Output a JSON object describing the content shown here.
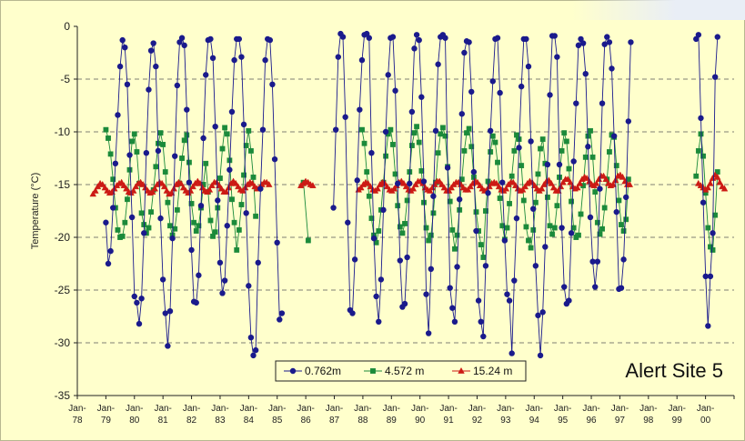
{
  "chart_data": {
    "type": "line",
    "title": "Alert Site 5",
    "ylabel": "Temperature (°C)",
    "xlabel": "",
    "ylim": [
      -35,
      0
    ],
    "yticks": [
      0,
      -5,
      -10,
      -15,
      -20,
      -25,
      -30,
      -35
    ],
    "xlim": [
      1978,
      2001
    ],
    "xtick_labels": [
      {
        "year": 1978,
        "top": "Jan-",
        "bottom": "78"
      },
      {
        "year": 1979,
        "top": "Jan-",
        "bottom": "79"
      },
      {
        "year": 1980,
        "top": "Jan-",
        "bottom": "80"
      },
      {
        "year": 1981,
        "top": "Jan-",
        "bottom": "81"
      },
      {
        "year": 1982,
        "top": "Jan-",
        "bottom": "82"
      },
      {
        "year": 1983,
        "top": "Jan-",
        "bottom": "83"
      },
      {
        "year": 1984,
        "top": "Jan-",
        "bottom": "84"
      },
      {
        "year": 1985,
        "top": "Jan-",
        "bottom": "85"
      },
      {
        "year": 1986,
        "top": "Jan-",
        "bottom": "86"
      },
      {
        "year": 1987,
        "top": "Jan-",
        "bottom": "87"
      },
      {
        "year": 1988,
        "top": "Jan-",
        "bottom": "88"
      },
      {
        "year": 1989,
        "top": "Jan-",
        "bottom": "89"
      },
      {
        "year": 1990,
        "top": "Jan-",
        "bottom": "90"
      },
      {
        "year": 1991,
        "top": "Jan-",
        "bottom": "91"
      },
      {
        "year": 1992,
        "top": "Jan-",
        "bottom": "92"
      },
      {
        "year": 1993,
        "top": "Jan-",
        "bottom": "93"
      },
      {
        "year": 1994,
        "top": "Jan-",
        "bottom": "94"
      },
      {
        "year": 1995,
        "top": "Jan-",
        "bottom": "95"
      },
      {
        "year": 1996,
        "top": "Jan-",
        "bottom": "96"
      },
      {
        "year": 1997,
        "top": "Jan-",
        "bottom": "97"
      },
      {
        "year": 1998,
        "top": "Jan-",
        "bottom": "98"
      },
      {
        "year": 1999,
        "top": "Jan-",
        "bottom": "99"
      },
      {
        "year": 2000,
        "top": "Jan-",
        "bottom": "00"
      },
      {
        "year": 2001,
        "top": "",
        "bottom": ""
      }
    ],
    "grid": "horizontal dashed",
    "legend_position": "bottom-center",
    "series": [
      {
        "name": "0.762m",
        "color": "#1a1a8c",
        "marker": "circle",
        "segments": [
          {
            "start": 1979.0,
            "step": 0.0833,
            "values": [
              -18.6,
              -22.5,
              -21.3,
              -17.2,
              -13.0,
              -8.4,
              -3.8,
              -1.3,
              -2.0,
              -5.5,
              -12.2,
              -18.1,
              -25.6,
              -26.2,
              -28.2,
              -25.8,
              -19.6,
              -12.0,
              -6.0,
              -2.3,
              -1.6,
              -3.8,
              -11.8,
              -18.2,
              -24.0,
              -27.2,
              -30.3,
              -27.0,
              -20.1,
              -12.3,
              -5.6,
              -1.5,
              -1.1,
              -1.8,
              -7.9,
              -14.8,
              -21.2,
              -26.1,
              -26.2,
              -23.6,
              -17.0,
              -10.6,
              -4.6,
              -1.3,
              -1.2,
              -3.0,
              -9.5,
              -16.5,
              -22.4,
              -25.3,
              -24.1,
              -18.9,
              -13.6,
              -8.1,
              -3.2,
              -1.2,
              -1.2,
              -2.9,
              -9.3,
              -17.7,
              -24.6,
              -29.5,
              -31.2,
              -30.7,
              -22.4,
              -15.4,
              -9.8,
              -3.2,
              -1.2,
              -1.3,
              -5.5,
              -12.6,
              -20.5,
              -27.8,
              -27.2
            ]
          },
          {
            "start": 1986.97,
            "step": 0.0833,
            "values": [
              -17.2,
              -9.8,
              -2.9,
              -0.7,
              -1.0,
              -8.6,
              -18.6,
              -26.9,
              -27.2,
              -22.1,
              -14.6,
              -7.9,
              -3.2,
              -0.8,
              -0.7,
              -1.1,
              -12.0,
              -20.1,
              -25.6,
              -28.0,
              -24.0,
              -17.4,
              -10.0,
              -4.6,
              -1.1,
              -1.0,
              -6.1,
              -14.9,
              -22.2,
              -26.6,
              -26.3,
              -21.9,
              -14.9,
              -8.1,
              -2.1,
              -0.8,
              -1.3,
              -6.7,
              -14.7,
              -25.4,
              -29.1,
              -23.0,
              -16.1,
              -9.9,
              -3.6,
              -1.0,
              -0.8,
              -1.1,
              -13.4,
              -24.8,
              -26.7,
              -28.0,
              -22.8,
              -16.4,
              -8.3,
              -2.5,
              -1.4,
              -1.5,
              -6.2,
              -13.8,
              -19.4,
              -26.0,
              -28.0,
              -29.4,
              -22.7,
              -15.8,
              -9.9,
              -5.2,
              -1.2,
              -1.1,
              -6.3,
              -14.8,
              -20.3,
              -25.4,
              -26.0,
              -31.0,
              -24.1,
              -18.2,
              -11.5,
              -5.7,
              -1.2,
              -1.2,
              -3.8,
              -10.9,
              -17.3,
              -22.7,
              -27.4,
              -31.2,
              -27.1,
              -20.9,
              -13.1,
              -6.5,
              -0.9,
              -0.9,
              -2.9,
              -13.1,
              -19.1,
              -24.7,
              -26.3,
              -26.0,
              -19.6,
              -12.8,
              -7.3,
              -1.8,
              -1.2,
              -1.6,
              -4.5,
              -11.4,
              -18.1,
              -22.3,
              -24.7,
              -22.3,
              -15.4,
              -7.3,
              -1.7,
              -1.0,
              -1.5,
              -4.0,
              -10.4,
              -17.6,
              -24.9,
              -24.8,
              -22.1,
              -16.2,
              -9.0,
              -1.5
            ]
          },
          {
            "start": 1999.67,
            "step": 0.0833,
            "values": [
              -1.2,
              -0.8,
              -8.7,
              -16.7,
              -23.7,
              -28.4,
              -23.7,
              -19.6,
              -4.8,
              -1.0
            ]
          }
        ]
      },
      {
        "name": "4.572 m",
        "color": "#1b8a3a",
        "marker": "square",
        "segments": [
          {
            "start": 1979.0,
            "step": 0.0833,
            "values": [
              -9.8,
              -10.6,
              -12.1,
              -14.5,
              -17.2,
              -19.3,
              -20.0,
              -19.9,
              -18.6,
              -16.4,
              -13.6,
              -10.9,
              -10.2,
              -11.9,
              -14.9,
              -17.7,
              -18.8,
              -19.6,
              -19.1,
              -17.6,
              -15.5,
              -13.3,
              -11.1,
              -10.1,
              -11.2,
              -13.8,
              -16.7,
              -18.9,
              -19.8,
              -19.2,
              -17.4,
              -14.9,
              -12.5,
              -10.8,
              -10.3,
              -12.9,
              -16.8,
              -18.6,
              -19.4,
              -18.9,
              -17.2,
              -15.0,
              -13.0,
              -15.7,
              -18.4,
              -19.9,
              -19.5,
              -17.2,
              -14.4,
              -11.6,
              -9.6,
              -10.2,
              -12.7,
              -16.4,
              -18.6,
              -21.2,
              -19.3,
              -16.9,
              -14.1,
              -11.3,
              -9.9,
              -11.8,
              -14.3,
              -18.0
            ]
          },
          {
            "start": 1985.92,
            "step": 0.1667,
            "values": [
              -14.8,
              -20.3
            ]
          },
          {
            "start": 1987.97,
            "step": 0.0833,
            "values": [
              -9.8,
              -11.1,
              -13.8,
              -16.1,
              -18.2,
              -19.8,
              -20.5,
              -19.4,
              -17.4,
              -14.8,
              -12.3,
              -10.2,
              -9.8,
              -11.2,
              -14.0,
              -17.0,
              -19.0,
              -19.6,
              -18.7,
              -16.5,
              -13.8,
              -11.3,
              -10.1,
              -9.5,
              -11.0,
              -13.7,
              -16.7,
              -19.1,
              -20.3,
              -19.8,
              -17.7,
              -14.8,
              -12.0,
              -10.2,
              -9.6,
              -10.4,
              -13.3,
              -16.6,
              -19.3,
              -21.1,
              -19.8,
              -17.4,
              -14.5,
              -11.8,
              -10.1,
              -9.7,
              -11.4,
              -14.3,
              -17.6,
              -19.4,
              -20.7,
              -21.9,
              -17.5,
              -14.7,
              -11.9,
              -10.4,
              -11.0,
              -12.9,
              -16.3,
              -18.9,
              -20.2,
              -19.1,
              -16.8,
              -14.2,
              -11.8,
              -10.3,
              -10.7,
              -13.2,
              -16.5,
              -19.0,
              -20.3,
              -21.0,
              -19.3,
              -16.7,
              -14.0,
              -11.6,
              -10.7,
              -13.0,
              -16.2,
              -18.9,
              -19.7,
              -19.1,
              -17.0,
              -14.3,
              -11.8,
              -10.1,
              -10.9,
              -13.5,
              -16.6,
              -19.1,
              -20.0,
              -19.8,
              -17.8,
              -15.1,
              -12.4,
              -10.4,
              -9.9,
              -12.4,
              -15.7,
              -18.6,
              -19.7,
              -19.2,
              -17.2,
              -14.5,
              -11.9,
              -10.3,
              -10.5,
              -13.2,
              -16.5,
              -18.8,
              -19.4,
              -18.3,
              -14.5
            ]
          },
          {
            "start": 1999.67,
            "step": 0.0833,
            "values": [
              -14.2,
              -11.8,
              -10.2,
              -12.3,
              -15.8,
              -19.1,
              -20.9,
              -21.2,
              -17.9,
              -13.8
            ]
          }
        ]
      },
      {
        "name": "15.24 m",
        "color": "#cc1a14",
        "marker": "triangle",
        "segments": [
          {
            "start": 1978.55,
            "step": 0.0833,
            "values": [
              -15.9,
              -15.6,
              -15.2,
              -14.9,
              -15.0,
              -15.3,
              -15.6,
              -15.8,
              -15.7,
              -15.4,
              -15.1,
              -14.9,
              -14.8,
              -15.1,
              -15.4,
              -15.7,
              -15.8,
              -15.6,
              -15.2,
              -14.9,
              -14.8,
              -15.0,
              -15.3,
              -15.6,
              -15.8,
              -15.7,
              -15.4,
              -15.0,
              -14.8,
              -14.9,
              -15.2,
              -15.6,
              -15.9,
              -15.8,
              -15.4,
              -15.0,
              -14.8,
              -14.9,
              -15.3,
              -15.6,
              -15.8,
              -15.6,
              -15.2,
              -14.9,
              -14.7,
              -14.9,
              -15.3,
              -15.6,
              -15.7,
              -15.5,
              -15.1,
              -14.8,
              -14.8,
              -15.1,
              -15.4,
              -15.7,
              -15.7,
              -15.3,
              -14.9,
              -14.7,
              -14.9,
              -15.2,
              -15.5,
              -15.6,
              -15.3,
              -15.0,
              -14.8,
              -14.9,
              -15.2,
              -15.4,
              -15.3,
              -15.0,
              -14.8,
              -14.8,
              -15.0
            ]
          },
          {
            "start": 1985.83,
            "step": 0.0833,
            "values": [
              -15.1,
              -14.9,
              -14.7,
              -14.8,
              -15.0,
              -15.1
            ]
          },
          {
            "start": 1987.85,
            "step": 0.0833,
            "values": [
              -15.5,
              -15.3,
              -15.0,
              -14.8,
              -14.9,
              -15.2,
              -15.5,
              -15.6,
              -15.4,
              -15.0,
              -14.8,
              -14.9,
              -15.2,
              -15.5,
              -15.6,
              -15.4,
              -15.1,
              -14.8,
              -14.7,
              -14.9,
              -15.2,
              -15.5,
              -15.6,
              -15.4,
              -15.0,
              -14.7,
              -14.7,
              -14.9,
              -15.3,
              -15.5,
              -15.6,
              -15.3,
              -15.0,
              -14.7,
              -14.7,
              -15.0,
              -15.3,
              -15.6,
              -15.6,
              -15.3,
              -15.0,
              -14.8,
              -14.8,
              -15.0,
              -15.3,
              -15.5,
              -15.5,
              -15.2,
              -14.9,
              -14.7,
              -14.8,
              -15.1,
              -15.4,
              -15.6,
              -15.5,
              -15.2,
              -14.9,
              -14.8,
              -14.9,
              -15.2,
              -15.5,
              -15.6,
              -15.4,
              -15.0,
              -14.8,
              -14.8,
              -15.1,
              -15.4,
              -15.6,
              -15.5,
              -15.2,
              -14.9,
              -14.7,
              -14.8,
              -15.1,
              -15.4,
              -15.6,
              -15.4,
              -15.0,
              -14.7,
              -14.6,
              -14.9,
              -15.3,
              -15.6,
              -15.6,
              -15.2,
              -14.8,
              -14.5,
              -14.5,
              -14.8,
              -15.2,
              -15.4,
              -15.3,
              -14.9,
              -14.5,
              -14.3,
              -14.4,
              -14.7,
              -15.0,
              -15.1,
              -14.9,
              -14.5,
              -14.2,
              -14.2,
              -14.5,
              -14.9,
              -15.1,
              -15.0,
              -14.6,
              -14.2,
              -14.1,
              -14.3,
              -14.7,
              -15.0,
              -15.0
            ]
          },
          {
            "start": 1999.75,
            "step": 0.0833,
            "values": [
              -14.9,
              -15.1,
              -15.3,
              -15.5,
              -15.3,
              -14.9,
              -14.4,
              -14.1,
              -14.3,
              -14.8,
              -15.2,
              -15.4
            ]
          }
        ]
      }
    ]
  }
}
